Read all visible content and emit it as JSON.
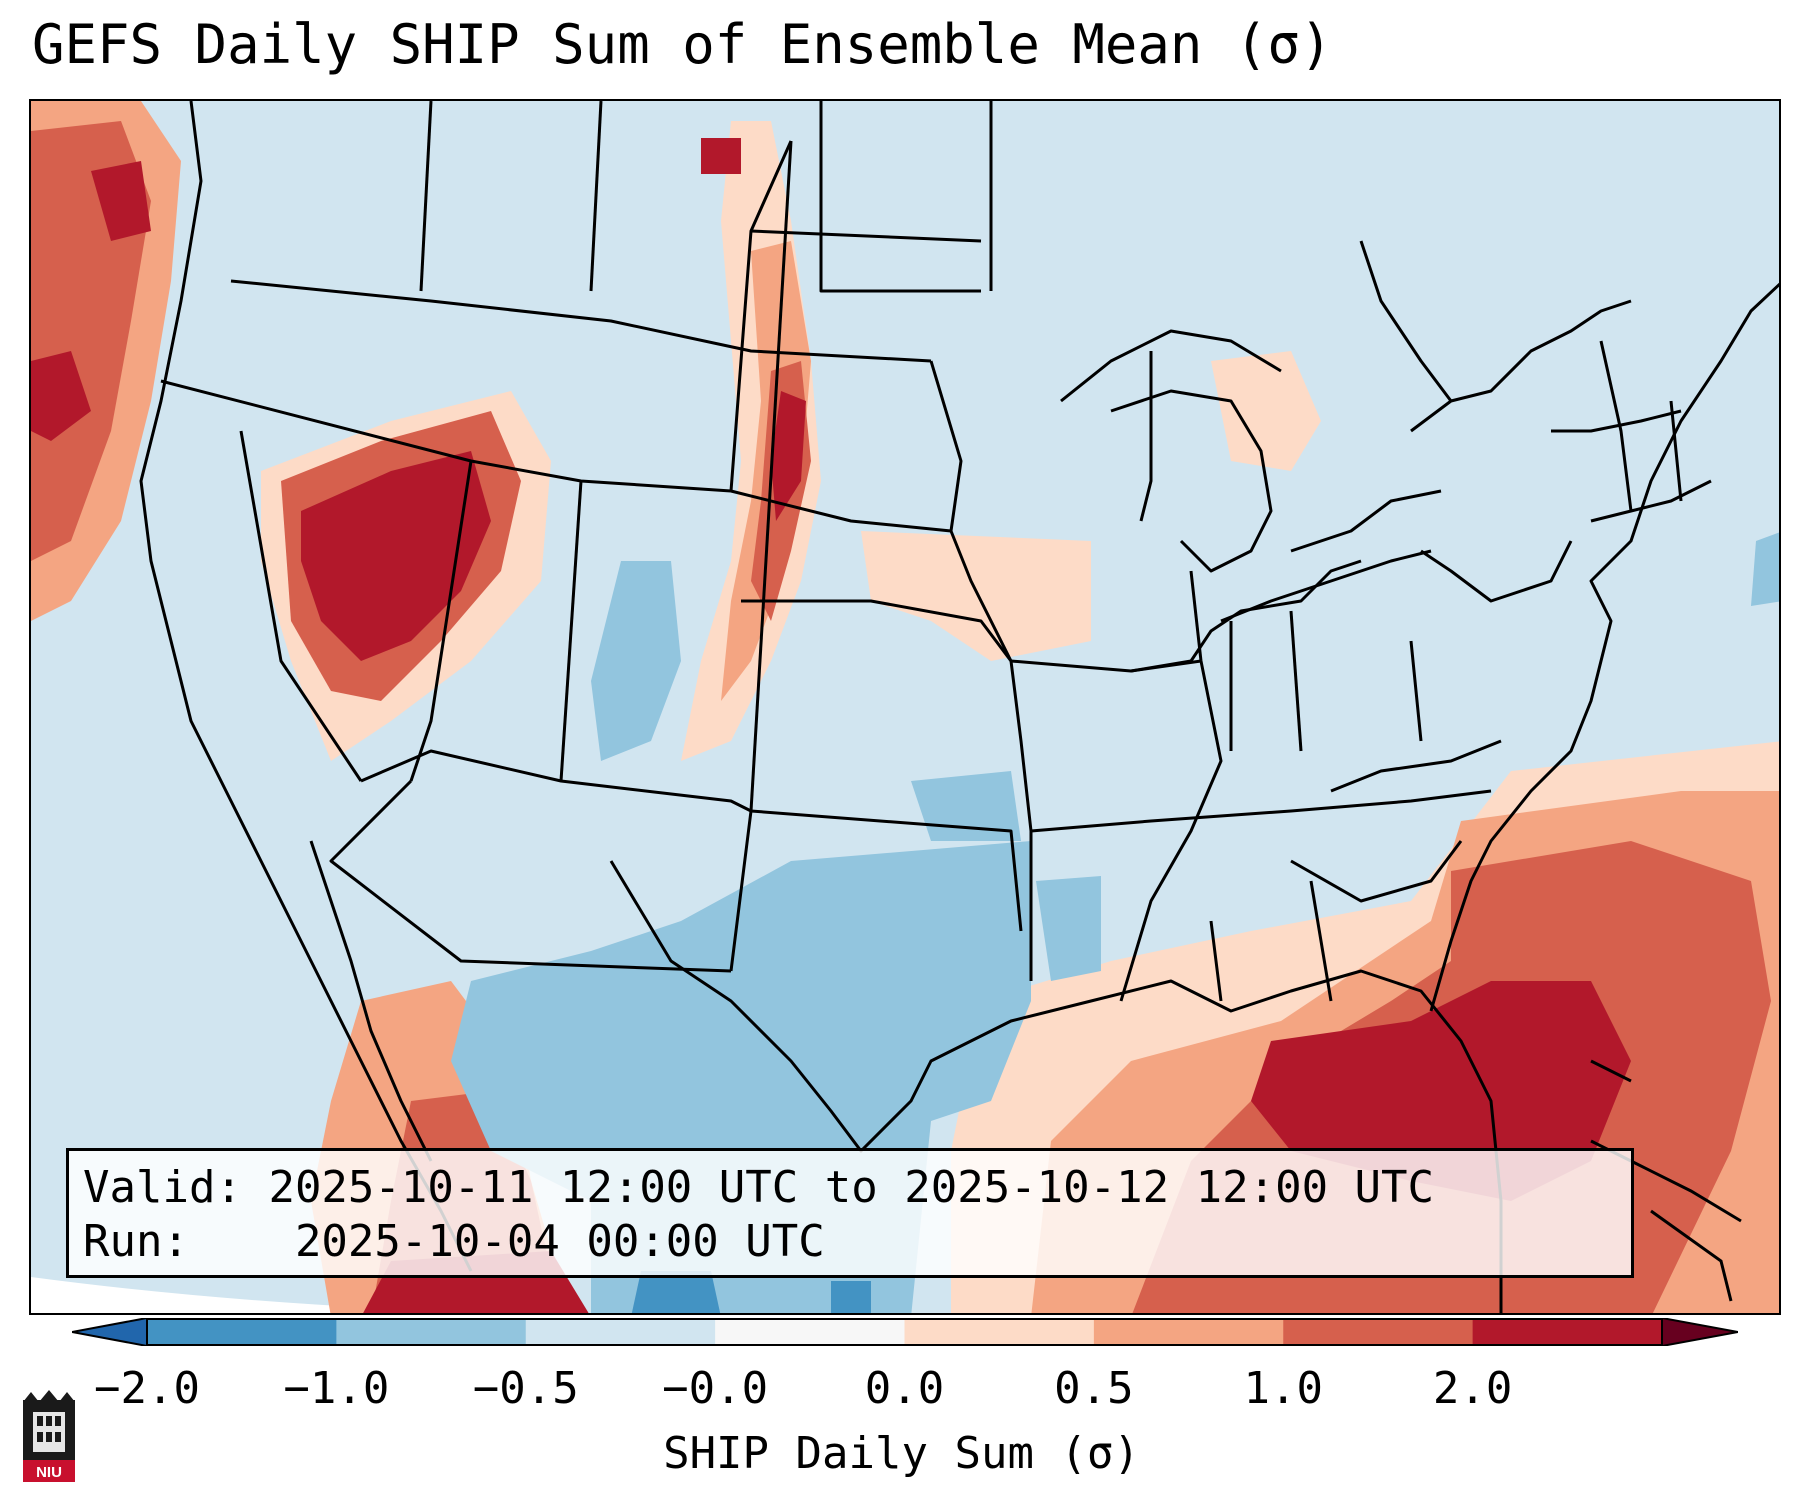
{
  "title": "GEFS Daily SHIP Sum of Ensemble Mean (σ)",
  "info": {
    "valid_label": "Valid:",
    "valid_value": "2025-10-11 12:00 UTC to 2025-10-12 12:00 UTC",
    "run_label": "Run:",
    "run_value": "2025-10-04 00:00 UTC"
  },
  "colorbar": {
    "label": "SHIP Daily Sum (σ)",
    "ticks": [
      "−2.0",
      "−1.0",
      "−0.5",
      "−0.0",
      "0.0",
      "0.5",
      "1.0",
      "2.0"
    ],
    "colors": [
      "#4393c3",
      "#92c5de",
      "#d1e5f0",
      "#f7f7f7",
      "#fddbc7",
      "#f4a582",
      "#d6604d",
      "#b2182b"
    ],
    "under_color": "#2166ac",
    "over_color": "#67001f"
  },
  "logo": {
    "text": "NIU"
  }
}
